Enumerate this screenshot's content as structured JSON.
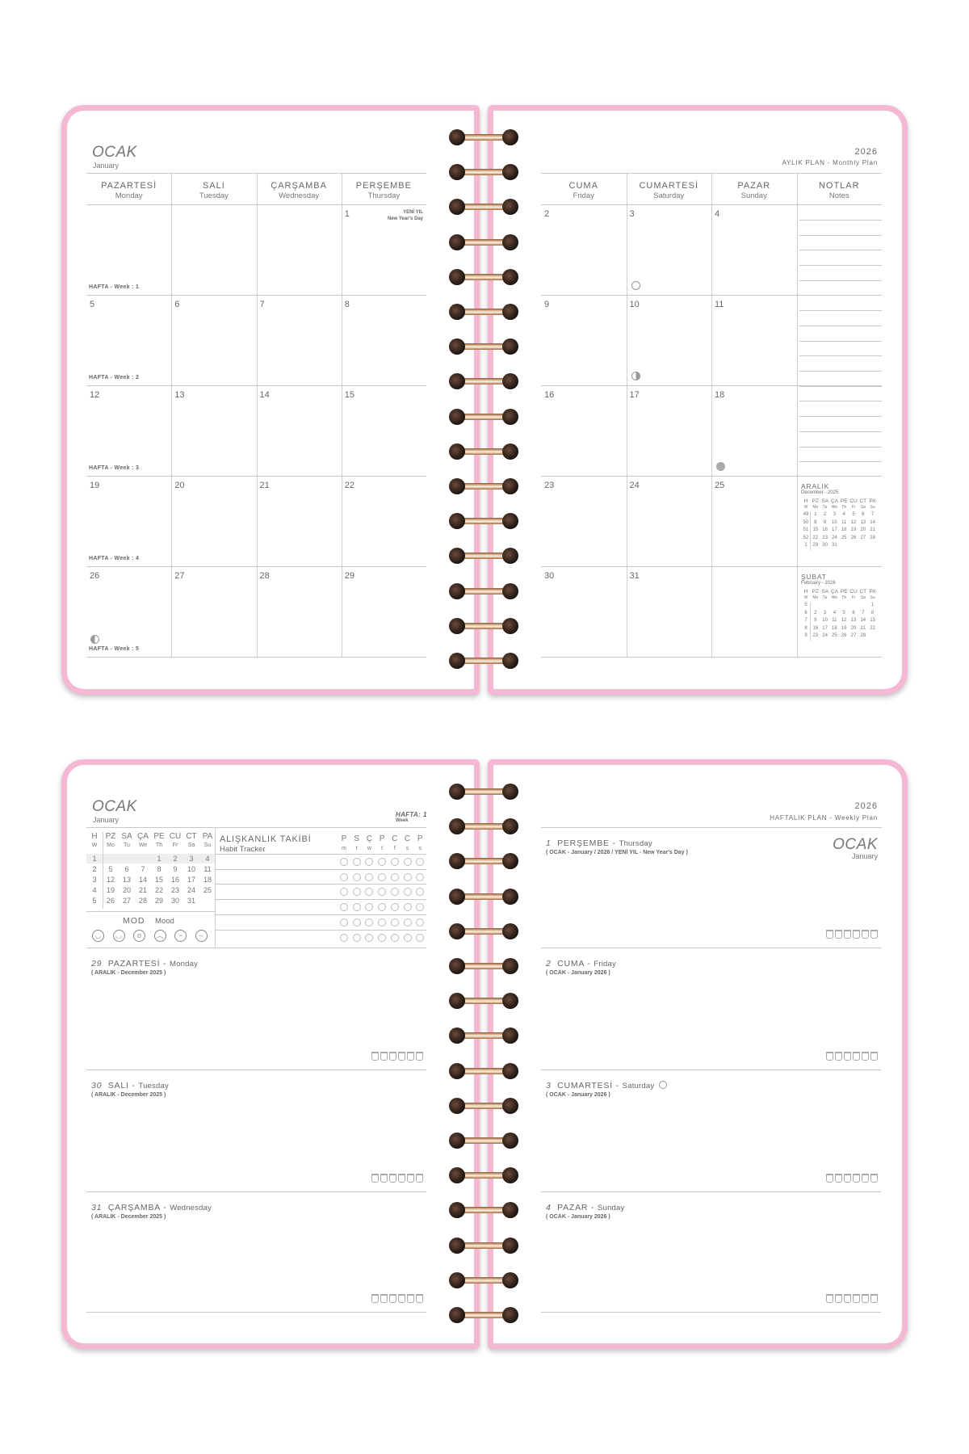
{
  "colors": {
    "cover": "#f5b8d3",
    "text": "#6a6a6a",
    "rule": "#c8c8c8",
    "wire": "#e8c39e"
  },
  "monthly": {
    "month": "OCAK",
    "month_en": "January",
    "year": "2026",
    "plan_label": "AYLIK PLAN - Monthly Plan",
    "left_headers": [
      {
        "tr": "PAZARTESİ",
        "en": "Monday"
      },
      {
        "tr": "SALI",
        "en": "Tuesday"
      },
      {
        "tr": "ÇARŞAMBA",
        "en": "Wednesday"
      },
      {
        "tr": "PERŞEMBE",
        "en": "Thursday"
      }
    ],
    "right_headers": [
      {
        "tr": "CUMA",
        "en": "Friday"
      },
      {
        "tr": "CUMARTESİ",
        "en": "Saturday"
      },
      {
        "tr": "PAZAR",
        "en": "Sunday"
      },
      {
        "tr": "NOTLAR",
        "en": "Notes"
      }
    ],
    "holiday": {
      "tr": "YENİ YIL",
      "en": "New Year's Day"
    },
    "weeks": [
      {
        "label": "HAFTA - Week : 1",
        "left": [
          "",
          "",
          "",
          "1"
        ],
        "right": [
          "2",
          "3",
          "4"
        ]
      },
      {
        "label": "HAFTA - Week : 2",
        "left": [
          "5",
          "6",
          "7",
          "8"
        ],
        "right": [
          "9",
          "10",
          "11"
        ]
      },
      {
        "label": "HAFTA - Week : 3",
        "left": [
          "12",
          "13",
          "14",
          "15"
        ],
        "right": [
          "16",
          "17",
          "18"
        ]
      },
      {
        "label": "HAFTA - Week : 4",
        "left": [
          "19",
          "20",
          "21",
          "22"
        ],
        "right": [
          "23",
          "24",
          "25"
        ]
      },
      {
        "label": "HAFTA - Week : 5",
        "left": [
          "26",
          "27",
          "28",
          "29"
        ],
        "right": [
          "30",
          "31",
          ""
        ]
      }
    ],
    "moon_phases": [
      {
        "day": "3",
        "icon": "full-moon-icon"
      },
      {
        "day": "10",
        "icon": "first-quarter-moon-icon"
      },
      {
        "day": "18",
        "icon": "new-moon-icon"
      },
      {
        "day": "26",
        "icon": "last-quarter-moon-icon"
      }
    ],
    "mini_calendars": [
      {
        "title": "ARALIK",
        "subtitle": "December - 2025",
        "head_tr": [
          "H",
          "PZ",
          "SA",
          "ÇA",
          "PE",
          "CU",
          "CT",
          "PA"
        ],
        "head_en": [
          "W",
          "Mo",
          "Tu",
          "We",
          "Th",
          "Fr",
          "Sa",
          "Su"
        ],
        "rows": [
          [
            "49",
            "1",
            "2",
            "3",
            "4",
            "5",
            "6",
            "7"
          ],
          [
            "50",
            "8",
            "9",
            "10",
            "11",
            "12",
            "13",
            "14"
          ],
          [
            "51",
            "15",
            "16",
            "17",
            "18",
            "19",
            "20",
            "21"
          ],
          [
            "52",
            "22",
            "23",
            "24",
            "25",
            "26",
            "27",
            "28"
          ],
          [
            "1",
            "29",
            "30",
            "31",
            "",
            "",
            "",
            ""
          ]
        ]
      },
      {
        "title": "ŞUBAT",
        "subtitle": "February - 2026",
        "head_tr": [
          "H",
          "PZ",
          "SA",
          "ÇA",
          "PE",
          "CU",
          "CT",
          "PA"
        ],
        "head_en": [
          "W",
          "Mo",
          "Tu",
          "We",
          "Th",
          "Fr",
          "Sa",
          "Su"
        ],
        "rows": [
          [
            "5",
            "",
            "",
            "",
            "",
            "",
            "",
            "1"
          ],
          [
            "6",
            "2",
            "3",
            "4",
            "5",
            "6",
            "7",
            "8"
          ],
          [
            "7",
            "9",
            "10",
            "11",
            "12",
            "13",
            "14",
            "15"
          ],
          [
            "8",
            "16",
            "17",
            "18",
            "19",
            "20",
            "21",
            "22"
          ],
          [
            "9",
            "23",
            "24",
            "25",
            "26",
            "27",
            "28",
            ""
          ]
        ]
      }
    ]
  },
  "weekly": {
    "month": "OCAK",
    "month_en": "January",
    "week_label": "HAFTA:",
    "week_no": "1",
    "week_en": "Week",
    "year": "2026",
    "plan_label": "HAFTALIK PLAN - Weekly Plan",
    "mini_calendar": {
      "head_tr": [
        "H",
        "PZ",
        "SA",
        "ÇA",
        "PE",
        "CU",
        "CT",
        "PA"
      ],
      "head_en": [
        "W",
        "Mo",
        "Tu",
        "We",
        "Th",
        "Fr",
        "Sa",
        "Su"
      ],
      "rows": [
        [
          "1",
          "",
          "",
          "",
          "1",
          "2",
          "3",
          "4"
        ],
        [
          "2",
          "5",
          "6",
          "7",
          "8",
          "9",
          "10",
          "11"
        ],
        [
          "3",
          "12",
          "13",
          "14",
          "15",
          "16",
          "17",
          "18"
        ],
        [
          "4",
          "19",
          "20",
          "21",
          "22",
          "23",
          "24",
          "25"
        ],
        [
          "5",
          "26",
          "27",
          "28",
          "29",
          "30",
          "31",
          ""
        ]
      ]
    },
    "mood": {
      "tr": "MOD",
      "en": "Mood",
      "faces": [
        "happy-face-icon",
        "laughing-face-icon",
        "surprised-face-icon",
        "sad-face-icon",
        "worried-face-icon",
        "neutral-face-icon"
      ]
    },
    "habit": {
      "title": "ALIŞKANLIK TAKİBİ",
      "subtitle": "Habit Tracker",
      "days_tr": [
        "P",
        "S",
        "Ç",
        "P",
        "C",
        "C",
        "P"
      ],
      "days_en": [
        "m",
        "t",
        "w",
        "t",
        "f",
        "s",
        "s"
      ],
      "rows": 6
    },
    "left_days": [
      {
        "num": "29",
        "tr": "PAZARTESİ",
        "en": "Monday",
        "sub": "( ARALIK - December 2025 )"
      },
      {
        "num": "30",
        "tr": "SALI",
        "en": "Tuesday",
        "sub": "( ARALIK - December 2025 )"
      },
      {
        "num": "31",
        "tr": "ÇARŞAMBA",
        "en": "Wednesday",
        "sub": "( ARALIK - December 2025 )"
      }
    ],
    "right_days": [
      {
        "num": "1",
        "tr": "PERŞEMBE",
        "en": "Thursday",
        "sub": "( OCAK - January / 2026 / YENİ YIL - New Year's Day )"
      },
      {
        "num": "2",
        "tr": "CUMA",
        "en": "Friday",
        "sub": "( OCAK - January 2026 )"
      },
      {
        "num": "3",
        "tr": "CUMARTESİ",
        "en": "Saturday",
        "sub": "( OCAK - January 2026 )",
        "moon": "full-moon-icon"
      },
      {
        "num": "4",
        "tr": "PAZAR",
        "en": "Sunday",
        "sub": "( OCAK - January 2026 )"
      }
    ],
    "water_cups": 6
  }
}
